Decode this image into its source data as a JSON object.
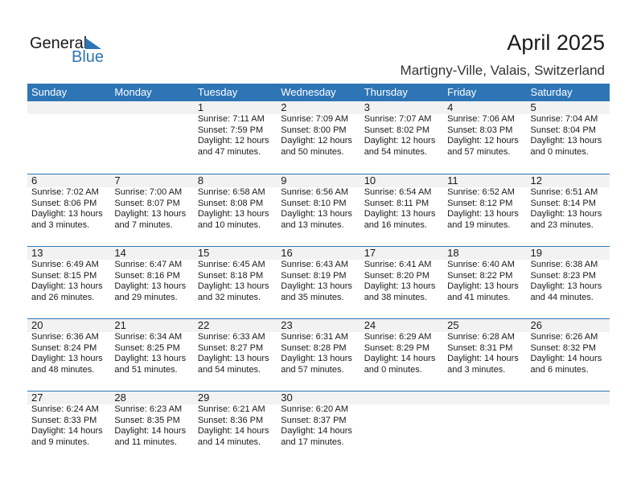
{
  "logo": {
    "word1": "General",
    "word2": "Blue",
    "accent": "#2e75b6"
  },
  "title": "April 2025",
  "location": "Martigny-Ville, Valais, Switzerland",
  "days": [
    "Sunday",
    "Monday",
    "Tuesday",
    "Wednesday",
    "Thursday",
    "Friday",
    "Saturday"
  ],
  "weeks": [
    [
      null,
      null,
      {
        "day": "1",
        "sunrise": "Sunrise: 7:11 AM",
        "sunset": "Sunset: 7:59 PM",
        "daylight1": "Daylight: 12 hours",
        "daylight2": "and 47 minutes."
      },
      {
        "day": "2",
        "sunrise": "Sunrise: 7:09 AM",
        "sunset": "Sunset: 8:00 PM",
        "daylight1": "Daylight: 12 hours",
        "daylight2": "and 50 minutes."
      },
      {
        "day": "3",
        "sunrise": "Sunrise: 7:07 AM",
        "sunset": "Sunset: 8:02 PM",
        "daylight1": "Daylight: 12 hours",
        "daylight2": "and 54 minutes."
      },
      {
        "day": "4",
        "sunrise": "Sunrise: 7:06 AM",
        "sunset": "Sunset: 8:03 PM",
        "daylight1": "Daylight: 12 hours",
        "daylight2": "and 57 minutes."
      },
      {
        "day": "5",
        "sunrise": "Sunrise: 7:04 AM",
        "sunset": "Sunset: 8:04 PM",
        "daylight1": "Daylight: 13 hours",
        "daylight2": "and 0 minutes."
      }
    ],
    [
      {
        "day": "6",
        "sunrise": "Sunrise: 7:02 AM",
        "sunset": "Sunset: 8:06 PM",
        "daylight1": "Daylight: 13 hours",
        "daylight2": "and 3 minutes."
      },
      {
        "day": "7",
        "sunrise": "Sunrise: 7:00 AM",
        "sunset": "Sunset: 8:07 PM",
        "daylight1": "Daylight: 13 hours",
        "daylight2": "and 7 minutes."
      },
      {
        "day": "8",
        "sunrise": "Sunrise: 6:58 AM",
        "sunset": "Sunset: 8:08 PM",
        "daylight1": "Daylight: 13 hours",
        "daylight2": "and 10 minutes."
      },
      {
        "day": "9",
        "sunrise": "Sunrise: 6:56 AM",
        "sunset": "Sunset: 8:10 PM",
        "daylight1": "Daylight: 13 hours",
        "daylight2": "and 13 minutes."
      },
      {
        "day": "10",
        "sunrise": "Sunrise: 6:54 AM",
        "sunset": "Sunset: 8:11 PM",
        "daylight1": "Daylight: 13 hours",
        "daylight2": "and 16 minutes."
      },
      {
        "day": "11",
        "sunrise": "Sunrise: 6:52 AM",
        "sunset": "Sunset: 8:12 PM",
        "daylight1": "Daylight: 13 hours",
        "daylight2": "and 19 minutes."
      },
      {
        "day": "12",
        "sunrise": "Sunrise: 6:51 AM",
        "sunset": "Sunset: 8:14 PM",
        "daylight1": "Daylight: 13 hours",
        "daylight2": "and 23 minutes."
      }
    ],
    [
      {
        "day": "13",
        "sunrise": "Sunrise: 6:49 AM",
        "sunset": "Sunset: 8:15 PM",
        "daylight1": "Daylight: 13 hours",
        "daylight2": "and 26 minutes."
      },
      {
        "day": "14",
        "sunrise": "Sunrise: 6:47 AM",
        "sunset": "Sunset: 8:16 PM",
        "daylight1": "Daylight: 13 hours",
        "daylight2": "and 29 minutes."
      },
      {
        "day": "15",
        "sunrise": "Sunrise: 6:45 AM",
        "sunset": "Sunset: 8:18 PM",
        "daylight1": "Daylight: 13 hours",
        "daylight2": "and 32 minutes."
      },
      {
        "day": "16",
        "sunrise": "Sunrise: 6:43 AM",
        "sunset": "Sunset: 8:19 PM",
        "daylight1": "Daylight: 13 hours",
        "daylight2": "and 35 minutes."
      },
      {
        "day": "17",
        "sunrise": "Sunrise: 6:41 AM",
        "sunset": "Sunset: 8:20 PM",
        "daylight1": "Daylight: 13 hours",
        "daylight2": "and 38 minutes."
      },
      {
        "day": "18",
        "sunrise": "Sunrise: 6:40 AM",
        "sunset": "Sunset: 8:22 PM",
        "daylight1": "Daylight: 13 hours",
        "daylight2": "and 41 minutes."
      },
      {
        "day": "19",
        "sunrise": "Sunrise: 6:38 AM",
        "sunset": "Sunset: 8:23 PM",
        "daylight1": "Daylight: 13 hours",
        "daylight2": "and 44 minutes."
      }
    ],
    [
      {
        "day": "20",
        "sunrise": "Sunrise: 6:36 AM",
        "sunset": "Sunset: 8:24 PM",
        "daylight1": "Daylight: 13 hours",
        "daylight2": "and 48 minutes."
      },
      {
        "day": "21",
        "sunrise": "Sunrise: 6:34 AM",
        "sunset": "Sunset: 8:25 PM",
        "daylight1": "Daylight: 13 hours",
        "daylight2": "and 51 minutes."
      },
      {
        "day": "22",
        "sunrise": "Sunrise: 6:33 AM",
        "sunset": "Sunset: 8:27 PM",
        "daylight1": "Daylight: 13 hours",
        "daylight2": "and 54 minutes."
      },
      {
        "day": "23",
        "sunrise": "Sunrise: 6:31 AM",
        "sunset": "Sunset: 8:28 PM",
        "daylight1": "Daylight: 13 hours",
        "daylight2": "and 57 minutes."
      },
      {
        "day": "24",
        "sunrise": "Sunrise: 6:29 AM",
        "sunset": "Sunset: 8:29 PM",
        "daylight1": "Daylight: 14 hours",
        "daylight2": "and 0 minutes."
      },
      {
        "day": "25",
        "sunrise": "Sunrise: 6:28 AM",
        "sunset": "Sunset: 8:31 PM",
        "daylight1": "Daylight: 14 hours",
        "daylight2": "and 3 minutes."
      },
      {
        "day": "26",
        "sunrise": "Sunrise: 6:26 AM",
        "sunset": "Sunset: 8:32 PM",
        "daylight1": "Daylight: 14 hours",
        "daylight2": "and 6 minutes."
      }
    ],
    [
      {
        "day": "27",
        "sunrise": "Sunrise: 6:24 AM",
        "sunset": "Sunset: 8:33 PM",
        "daylight1": "Daylight: 14 hours",
        "daylight2": "and 9 minutes."
      },
      {
        "day": "28",
        "sunrise": "Sunrise: 6:23 AM",
        "sunset": "Sunset: 8:35 PM",
        "daylight1": "Daylight: 14 hours",
        "daylight2": "and 11 minutes."
      },
      {
        "day": "29",
        "sunrise": "Sunrise: 6:21 AM",
        "sunset": "Sunset: 8:36 PM",
        "daylight1": "Daylight: 14 hours",
        "daylight2": "and 14 minutes."
      },
      {
        "day": "30",
        "sunrise": "Sunrise: 6:20 AM",
        "sunset": "Sunset: 8:37 PM",
        "daylight1": "Daylight: 14 hours",
        "daylight2": "and 17 minutes."
      },
      null,
      null,
      null
    ]
  ]
}
